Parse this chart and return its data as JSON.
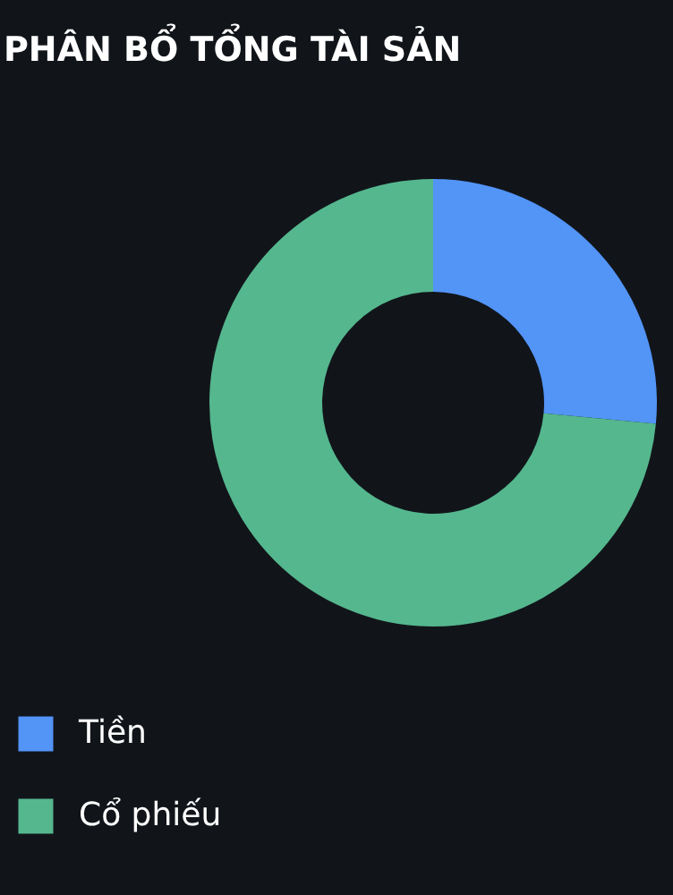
{
  "chart_data": {
    "type": "donut",
    "title": "PHÂN BỔ TỔNG TÀI SẢN",
    "categories": [
      "Tiền",
      "Cổ phiếu"
    ],
    "values": [
      26.5,
      73.5
    ],
    "colors": [
      "#5394f7",
      "#55b78e"
    ],
    "legend": "bottom left"
  }
}
